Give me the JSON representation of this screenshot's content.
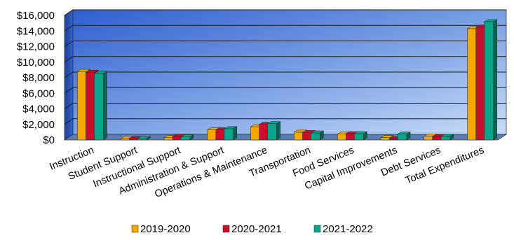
{
  "chart_data": {
    "type": "bar",
    "categories": [
      "Instruction",
      "Student Support",
      "Instructional Support",
      "Administration & Support",
      "Operations & Maintenance",
      "Transportation",
      "Food Services",
      "Capital Improvements",
      "Debt Services",
      "Total Expenditures"
    ],
    "series": [
      {
        "name": "2019-2020",
        "color": "#f5a800",
        "values": [
          8800,
          200,
          300,
          1300,
          1700,
          1000,
          750,
          300,
          500,
          14300
        ]
      },
      {
        "name": "2020-2021",
        "color": "#c8102e",
        "values": [
          8700,
          200,
          450,
          1300,
          2000,
          950,
          800,
          150,
          450,
          14500
        ]
      },
      {
        "name": "2021-2022",
        "color": "#0aa58a",
        "values": [
          8550,
          200,
          400,
          1450,
          2100,
          900,
          800,
          750,
          450,
          15200
        ]
      }
    ],
    "ylim": [
      0,
      16000
    ],
    "yticks": [
      "$0",
      "$2,000",
      "$4,000",
      "$6,000",
      "$8,000",
      "$10,000",
      "$12,000",
      "$14,000",
      "$16,000"
    ],
    "grid": true,
    "legend_position": "bottom",
    "title": "",
    "xlabel": "",
    "ylabel": ""
  }
}
